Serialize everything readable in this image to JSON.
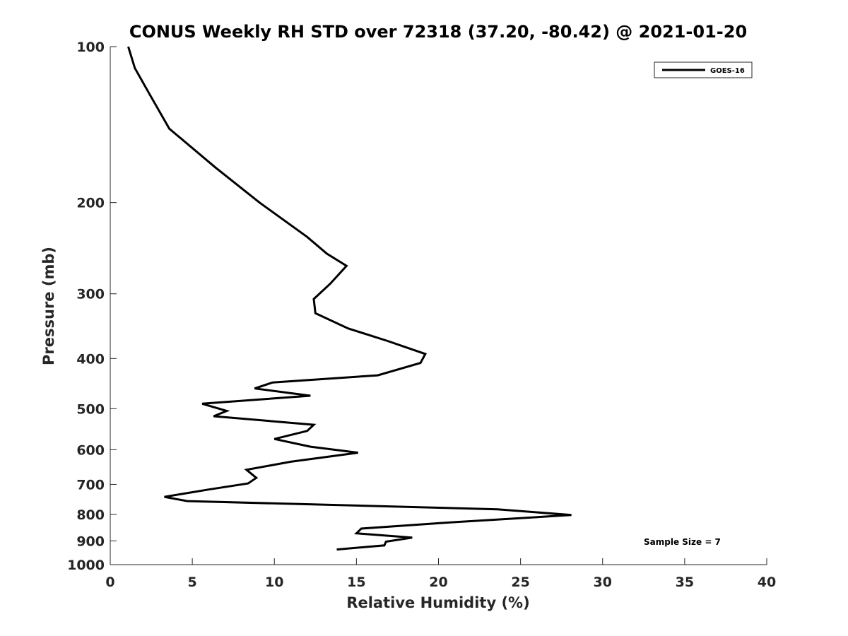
{
  "chart_data": {
    "type": "line",
    "title": "CONUS Weekly RH STD over 72318 (37.20, -80.42) @ 2021-01-20",
    "xlabel": "Relative Humidity (%)",
    "ylabel": "Pressure (mb)",
    "xlim": [
      0,
      40
    ],
    "ylim": [
      100,
      1000
    ],
    "y_scale": "log",
    "y_reversed": true,
    "xticks": [
      0,
      5,
      10,
      15,
      20,
      25,
      30,
      35,
      40
    ],
    "yticks": [
      100,
      200,
      300,
      400,
      500,
      600,
      700,
      800,
      900,
      1000
    ],
    "grid": false,
    "legend_position": "top-right",
    "annotation": "Sample Size = 7",
    "series": [
      {
        "name": "GOES-16",
        "color": "#000000",
        "x": [
          1.1,
          1.5,
          2.3,
          3.6,
          6.4,
          9.1,
          12.0,
          13.2,
          14.4,
          13.4,
          12.4,
          12.5,
          14.5,
          16.9,
          19.2,
          18.9,
          16.3,
          9.9,
          8.8,
          12.2,
          5.6,
          7.1,
          6.3,
          12.4,
          12.0,
          10.0,
          12.2,
          15.1,
          11.0,
          8.3,
          8.9,
          8.4,
          6.0,
          3.3,
          4.7,
          23.6,
          28.1,
          20.4,
          15.3,
          15.0,
          18.4,
          16.8,
          16.7,
          13.8
        ],
        "y": [
          100,
          110,
          122,
          144,
          171,
          200,
          233,
          251,
          265,
          287,
          307,
          327,
          350,
          370,
          392,
          408,
          431,
          445,
          457,
          472,
          489,
          505,
          517,
          537,
          552,
          572,
          592,
          608,
          633,
          656,
          680,
          697,
          716,
          740,
          754,
          782,
          802,
          830,
          852,
          870,
          887,
          903,
          918,
          935
        ]
      }
    ]
  }
}
